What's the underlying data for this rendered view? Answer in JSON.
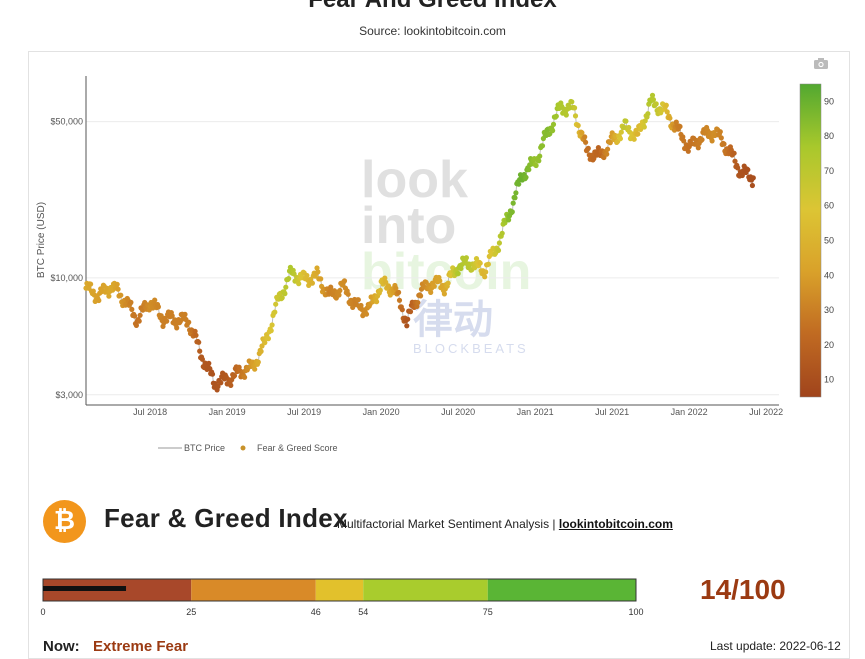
{
  "title": "Fear And Greed Index",
  "subtitle": "Source: lookintobitcoin.com",
  "chart_data": {
    "type": "line",
    "ylabel": "BTC Price (USD)",
    "y_scale": "log",
    "ylim": [
      2700,
      80000
    ],
    "y_ticks": [
      {
        "value": 3000,
        "label": "$3,000"
      },
      {
        "value": 10000,
        "label": "$10,000"
      },
      {
        "value": 50000,
        "label": "$50,000"
      }
    ],
    "x_ticks": [
      "Jul 2018",
      "Jan 2019",
      "Jul 2019",
      "Jan 2020",
      "Jul 2020",
      "Jan 2021",
      "Jul 2021",
      "Jan 2022",
      "Jul 2022"
    ],
    "x_range": [
      "2018-02",
      "2022-08"
    ],
    "colorbar": {
      "ticks": [
        10,
        20,
        30,
        40,
        50,
        60,
        70,
        80,
        90
      ],
      "range": [
        5,
        95
      ],
      "colors": [
        "#a0441c",
        "#c06a22",
        "#d9a12a",
        "#dcc534",
        "#a8c82c",
        "#52a830"
      ]
    },
    "series": [
      {
        "name": "BTC Price",
        "points": [
          [
            "2018-02",
            9000,
            45
          ],
          [
            "2018-03",
            8300,
            40
          ],
          [
            "2018-04",
            9200,
            45
          ],
          [
            "2018-05",
            8000,
            35
          ],
          [
            "2018-06",
            6500,
            25
          ],
          [
            "2018-07",
            7900,
            35
          ],
          [
            "2018-08",
            6600,
            30
          ],
          [
            "2018-09",
            6500,
            30
          ],
          [
            "2018-10",
            6400,
            30
          ],
          [
            "2018-11",
            4500,
            15
          ],
          [
            "2018-12",
            3400,
            12
          ],
          [
            "2019-01",
            3500,
            15
          ],
          [
            "2019-02",
            3800,
            25
          ],
          [
            "2019-03",
            4000,
            40
          ],
          [
            "2019-04",
            5200,
            55
          ],
          [
            "2019-05",
            8000,
            65
          ],
          [
            "2019-06",
            10500,
            75
          ],
          [
            "2019-07",
            9800,
            55
          ],
          [
            "2019-08",
            10200,
            45
          ],
          [
            "2019-09",
            8300,
            30
          ],
          [
            "2019-10",
            9200,
            35
          ],
          [
            "2019-11",
            7500,
            30
          ],
          [
            "2019-12",
            7200,
            35
          ],
          [
            "2020-01",
            9300,
            55
          ],
          [
            "2020-02",
            9000,
            40
          ],
          [
            "2020-03",
            6400,
            12
          ],
          [
            "2020-04",
            8600,
            30
          ],
          [
            "2020-05",
            9500,
            40
          ],
          [
            "2020-06",
            9200,
            45
          ],
          [
            "2020-07",
            11300,
            75
          ],
          [
            "2020-08",
            11700,
            70
          ],
          [
            "2020-09",
            10800,
            50
          ],
          [
            "2020-10",
            13700,
            65
          ],
          [
            "2020-11",
            19600,
            85
          ],
          [
            "2020-12",
            29000,
            90
          ],
          [
            "2021-01",
            33000,
            80
          ],
          [
            "2021-02",
            45000,
            85
          ],
          [
            "2021-03",
            58000,
            75
          ],
          [
            "2021-04",
            57000,
            70
          ],
          [
            "2021-05",
            37000,
            25
          ],
          [
            "2021-06",
            35000,
            20
          ],
          [
            "2021-07",
            41000,
            40
          ],
          [
            "2021-08",
            47000,
            70
          ],
          [
            "2021-09",
            43000,
            50
          ],
          [
            "2021-10",
            61000,
            75
          ],
          [
            "2021-11",
            57000,
            60
          ],
          [
            "2021-12",
            47000,
            30
          ],
          [
            "2022-01",
            38000,
            25
          ],
          [
            "2022-02",
            43000,
            30
          ],
          [
            "2022-03",
            45000,
            35
          ],
          [
            "2022-04",
            38000,
            25
          ],
          [
            "2022-05",
            30000,
            12
          ],
          [
            "2022-06",
            28000,
            10
          ]
        ]
      }
    ],
    "legend": [
      {
        "label": "BTC Price",
        "marker": "line"
      },
      {
        "label": "Fear & Greed Score",
        "marker": "dot"
      }
    ]
  },
  "watermark": {
    "line1": "look",
    "line2": "into",
    "line3": "bitcoin",
    "cn": "律动",
    "latin": "BLOCKBEATS"
  },
  "index_header": {
    "logo_glyph": "₿",
    "title": "Fear & Greed Index",
    "description": "Multifactorial Market Sentiment Analysis | ",
    "link": "lookintobitcoin.com"
  },
  "gauge": {
    "segments": [
      {
        "from": 0,
        "to": 25,
        "color": "#a8482a"
      },
      {
        "from": 25,
        "to": 46,
        "color": "#d98a28"
      },
      {
        "from": 46,
        "to": 54,
        "color": "#e2c12c"
      },
      {
        "from": 54,
        "to": 75,
        "color": "#a9cc2d"
      },
      {
        "from": 75,
        "to": 100,
        "color": "#5ab535"
      }
    ],
    "labels": [
      "0",
      "25",
      "46",
      "54",
      "75",
      "100"
    ],
    "value": 14,
    "score_text": "14/100"
  },
  "status": {
    "now_label": "Now:",
    "now_value": "Extreme Fear",
    "last_update": "Last update: 2022-06-12"
  }
}
